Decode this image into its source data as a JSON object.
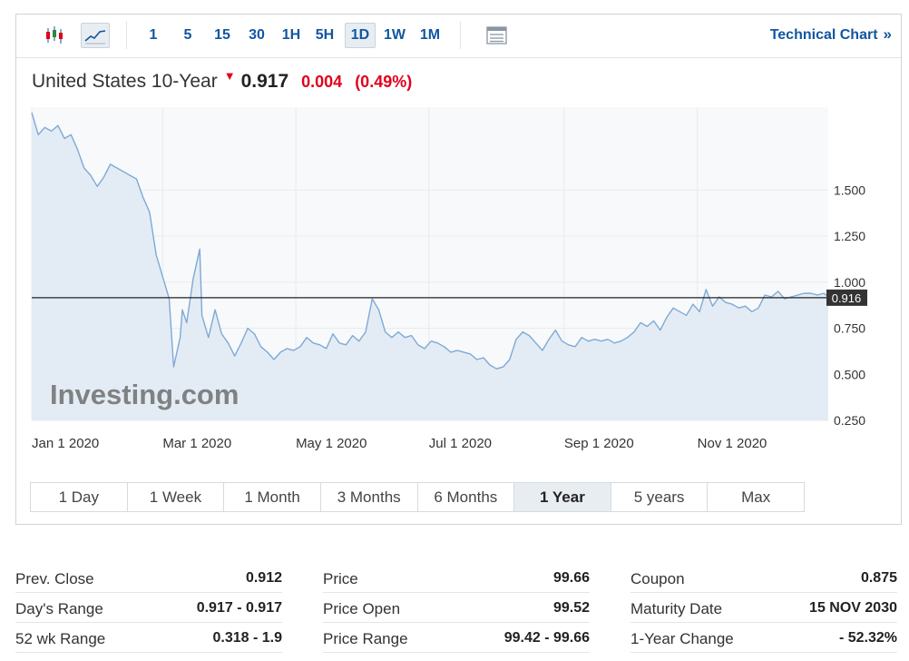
{
  "toolbar": {
    "intervals": [
      "1",
      "5",
      "15",
      "30",
      "1H",
      "5H",
      "1D",
      "1W",
      "1M"
    ],
    "active_interval": "1D",
    "technical_chart_label": "Technical Chart",
    "technical_chart_chevron": "»",
    "icons": [
      "candlestick-icon",
      "line-chart-icon",
      "table-icon"
    ]
  },
  "quote": {
    "name": "United States 10-Year",
    "direction_arrow": "▼",
    "last": "0.917",
    "change": "0.004",
    "change_pct": "(0.49%)"
  },
  "chart_data": {
    "type": "area",
    "x_tick_labels": [
      "Jan 1 2020",
      "Mar 1 2020",
      "May 1 2020",
      "Jul 1 2020",
      "Sep 1 2020",
      "Nov 1 2020"
    ],
    "y_tick_labels": [
      "1.500",
      "1.250",
      "1.000",
      "0.750",
      "0.500",
      "0.250"
    ],
    "ylim": [
      0.25,
      1.95
    ],
    "current_value_label": "0.916",
    "current_value": 0.916,
    "watermark": "Investing.com",
    "colors": {
      "line": "#7fa9d6",
      "fill": "#e3ecf4",
      "plot_bg": "#f7f9fb",
      "grid": "#e8ecef",
      "price_line": "#222222",
      "price_tag_bg": "#333333"
    },
    "series": [
      {
        "x": [
          "2020-01-01",
          "2020-01-04",
          "2020-01-07",
          "2020-01-10",
          "2020-01-13",
          "2020-01-16",
          "2020-01-19",
          "2020-01-22",
          "2020-01-25",
          "2020-01-28",
          "2020-01-31",
          "2020-02-03",
          "2020-02-06",
          "2020-02-09",
          "2020-02-12",
          "2020-02-15",
          "2020-02-18",
          "2020-02-21",
          "2020-02-24",
          "2020-02-27",
          "2020-03-01",
          "2020-03-04",
          "2020-03-06",
          "2020-03-09",
          "2020-03-10",
          "2020-03-12",
          "2020-03-15",
          "2020-03-18",
          "2020-03-19",
          "2020-03-22",
          "2020-03-25",
          "2020-03-28",
          "2020-03-31",
          "2020-04-03",
          "2020-04-06",
          "2020-04-09",
          "2020-04-12",
          "2020-04-15",
          "2020-04-18",
          "2020-04-21",
          "2020-04-24",
          "2020-04-27",
          "2020-04-30",
          "2020-05-03",
          "2020-05-06",
          "2020-05-09",
          "2020-05-12",
          "2020-05-15",
          "2020-05-18",
          "2020-05-21",
          "2020-05-24",
          "2020-05-27",
          "2020-05-30",
          "2020-06-02",
          "2020-06-05",
          "2020-06-08",
          "2020-06-11",
          "2020-06-14",
          "2020-06-17",
          "2020-06-20",
          "2020-06-23",
          "2020-06-26",
          "2020-06-29",
          "2020-07-02",
          "2020-07-05",
          "2020-07-08",
          "2020-07-11",
          "2020-07-14",
          "2020-07-17",
          "2020-07-20",
          "2020-07-23",
          "2020-07-26",
          "2020-07-29",
          "2020-08-01",
          "2020-08-04",
          "2020-08-07",
          "2020-08-10",
          "2020-08-13",
          "2020-08-16",
          "2020-08-19",
          "2020-08-22",
          "2020-08-25",
          "2020-08-28",
          "2020-08-31",
          "2020-09-03",
          "2020-09-06",
          "2020-09-09",
          "2020-09-12",
          "2020-09-15",
          "2020-09-18",
          "2020-09-21",
          "2020-09-24",
          "2020-09-27",
          "2020-09-30",
          "2020-10-03",
          "2020-10-06",
          "2020-10-09",
          "2020-10-12",
          "2020-10-15",
          "2020-10-18",
          "2020-10-21",
          "2020-10-24",
          "2020-10-27",
          "2020-10-30",
          "2020-11-02",
          "2020-11-05",
          "2020-11-08",
          "2020-11-11",
          "2020-11-14",
          "2020-11-17",
          "2020-11-20",
          "2020-11-23",
          "2020-11-26",
          "2020-11-29",
          "2020-12-02",
          "2020-12-05",
          "2020-12-08",
          "2020-12-11",
          "2020-12-14",
          "2020-12-17",
          "2020-12-20",
          "2020-12-23",
          "2020-12-26",
          "2020-12-29",
          "2020-12-31"
        ],
        "y": [
          1.92,
          1.8,
          1.84,
          1.82,
          1.85,
          1.78,
          1.8,
          1.72,
          1.62,
          1.58,
          1.52,
          1.57,
          1.64,
          1.62,
          1.6,
          1.58,
          1.56,
          1.46,
          1.38,
          1.15,
          1.03,
          0.91,
          0.54,
          0.7,
          0.85,
          0.78,
          1.02,
          1.18,
          0.82,
          0.7,
          0.85,
          0.72,
          0.67,
          0.6,
          0.67,
          0.75,
          0.72,
          0.65,
          0.62,
          0.58,
          0.62,
          0.64,
          0.63,
          0.65,
          0.7,
          0.67,
          0.66,
          0.64,
          0.72,
          0.67,
          0.66,
          0.71,
          0.68,
          0.73,
          0.91,
          0.85,
          0.73,
          0.7,
          0.73,
          0.7,
          0.71,
          0.66,
          0.64,
          0.68,
          0.67,
          0.65,
          0.62,
          0.63,
          0.62,
          0.61,
          0.58,
          0.59,
          0.55,
          0.53,
          0.54,
          0.58,
          0.69,
          0.73,
          0.71,
          0.67,
          0.63,
          0.69,
          0.74,
          0.68,
          0.66,
          0.65,
          0.7,
          0.68,
          0.69,
          0.68,
          0.69,
          0.67,
          0.68,
          0.7,
          0.73,
          0.78,
          0.76,
          0.79,
          0.74,
          0.81,
          0.86,
          0.84,
          0.82,
          0.88,
          0.84,
          0.96,
          0.87,
          0.92,
          0.89,
          0.88,
          0.86,
          0.87,
          0.84,
          0.86,
          0.93,
          0.92,
          0.95,
          0.91,
          0.92,
          0.93,
          0.94,
          0.94,
          0.93,
          0.94,
          0.92
        ]
      }
    ]
  },
  "range_tabs": [
    "1 Day",
    "1 Week",
    "1 Month",
    "3 Months",
    "6 Months",
    "1 Year",
    "5 years",
    "Max"
  ],
  "active_range": "1 Year",
  "stats": {
    "col1": [
      {
        "label": "Prev. Close",
        "value": "0.912"
      },
      {
        "label": "Day's Range",
        "value": "0.917 - 0.917"
      },
      {
        "label": "52 wk Range",
        "value": "0.318 - 1.9"
      }
    ],
    "col2": [
      {
        "label": "Price",
        "value": "99.66"
      },
      {
        "label": "Price Open",
        "value": "99.52"
      },
      {
        "label": "Price Range",
        "value": "99.42 - 99.66"
      }
    ],
    "col3": [
      {
        "label": "Coupon",
        "value": "0.875"
      },
      {
        "label": "Maturity Date",
        "value": "15 NOV 2030"
      },
      {
        "label": "1-Year Change",
        "value": "- 52.32%"
      }
    ]
  }
}
